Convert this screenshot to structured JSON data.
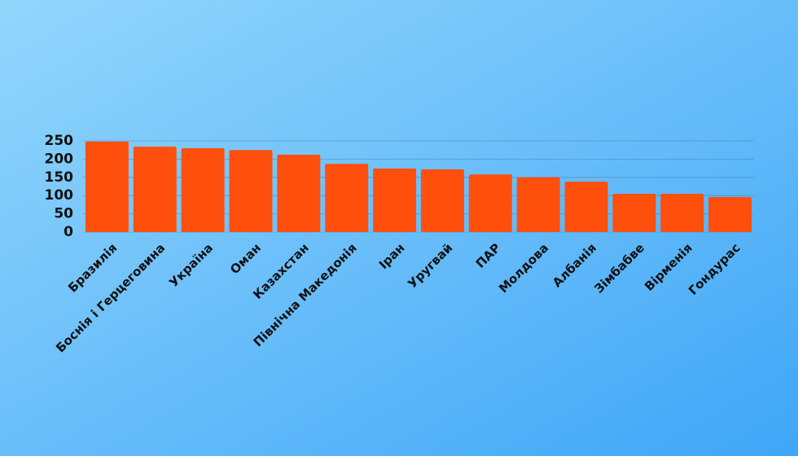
{
  "chart_data": {
    "type": "bar",
    "categories": [
      "Бразилія",
      "Боснія і Герцеговина",
      "Україна",
      "Оман",
      "Казахстан",
      "Північна Македонія",
      "Іран",
      "Уругвай",
      "ПАР",
      "Молдова",
      "Албанія",
      "Зімбабве",
      "Вірменія",
      "Гондурас"
    ],
    "values": [
      248,
      234,
      230,
      225,
      212,
      187,
      174,
      172,
      158,
      150,
      138,
      105,
      105,
      96
    ],
    "color": "#ff4f0c",
    "ylim": [
      0,
      250
    ],
    "yticks": [
      0,
      50,
      100,
      150,
      200,
      250
    ],
    "grid": true
  }
}
